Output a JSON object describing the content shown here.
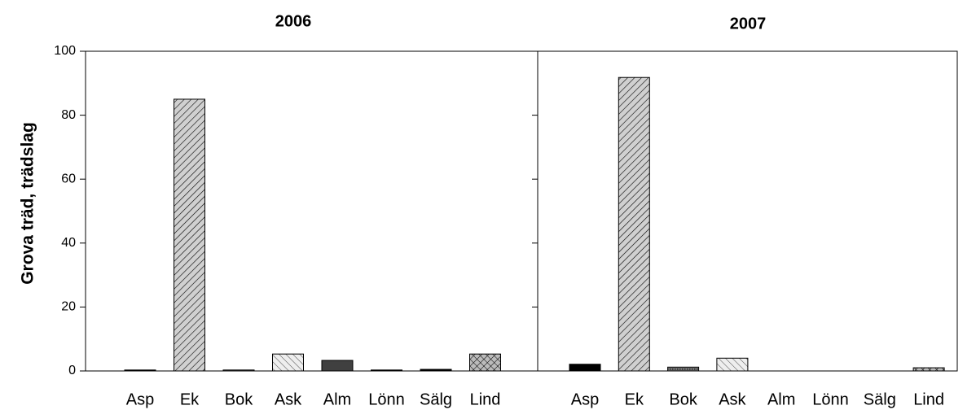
{
  "chart_data": [
    {
      "type": "bar",
      "title": "2006",
      "y_label": "Grova träd, trädslag",
      "categories": [
        "Asp",
        "Ek",
        "Bok",
        "Ask",
        "Alm",
        "Lönn",
        "Sälg",
        "Lind"
      ],
      "values": [
        0.3,
        85,
        0.3,
        5.3,
        3.3,
        0.3,
        0.5,
        5.3
      ],
      "fills": [
        "solid-black",
        "hatch-fwd",
        "dots",
        "hatch-back",
        "solid-dark",
        "solid-black",
        "solid-black",
        "cross"
      ],
      "ylim": [
        0,
        100
      ],
      "yticks": [
        0,
        20,
        40,
        60,
        80,
        100
      ]
    },
    {
      "type": "bar",
      "title": "2007",
      "categories": [
        "Asp",
        "Ek",
        "Bok",
        "Ask",
        "Alm",
        "Lönn",
        "Sälg",
        "Lind"
      ],
      "values": [
        2.1,
        91.8,
        1.2,
        4.0,
        0,
        0,
        0,
        1.0
      ],
      "fills": [
        "solid-black",
        "hatch-fwd",
        "dots",
        "hatch-back",
        "solid-dark",
        "solid-black",
        "solid-black",
        "cross"
      ],
      "ylim": [
        0,
        100
      ],
      "yticks": [
        0,
        20,
        40,
        60,
        80,
        100
      ]
    }
  ]
}
